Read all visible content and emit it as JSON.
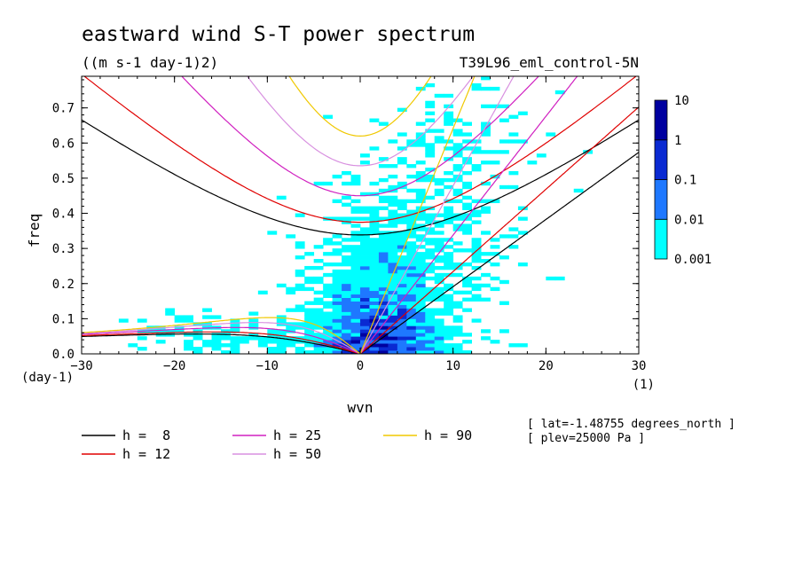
{
  "chart_data": {
    "type": "heatmap",
    "title": "eastward wind S-T power spectrum",
    "subtitle": "((m s-1 day-1)2)",
    "experiment": "T39L96_eml_control-5N",
    "xlabel": "wvn",
    "ylabel": "freq",
    "x_unit": "(1)",
    "y_unit": "(day-1)",
    "xlim": [
      -30,
      30
    ],
    "ylim": [
      0,
      0.79
    ],
    "x_ticks": [
      "-30",
      "-20",
      "-10",
      "0",
      "10",
      "20",
      "30"
    ],
    "y_ticks": [
      "0.0",
      "0.1",
      "0.2",
      "0.3",
      "0.4",
      "0.5",
      "0.6",
      "0.7"
    ],
    "colorbar": {
      "levels": [
        "0.001",
        "0.01",
        "0.1",
        "1",
        "10"
      ],
      "colors": [
        "#00ffff",
        "#1e78ff",
        "#0a2ad2",
        "#0000a0",
        "#4020b0"
      ]
    },
    "dispersion_curves": [
      {
        "name": "h =  8",
        "h": 8,
        "color": "#000000"
      },
      {
        "name": "h = 12",
        "h": 12,
        "color": "#e00000"
      },
      {
        "name": "h = 25",
        "h": 25,
        "color": "#d020c0"
      },
      {
        "name": "h = 50",
        "h": 50,
        "color": "#d890e0"
      },
      {
        "name": "h = 90",
        "h": 90,
        "color": "#f0c800"
      }
    ],
    "annotations": [
      "[ lat=-1.48755 degrees_north ]",
      "[ plev=25000 Pa ]"
    ]
  }
}
